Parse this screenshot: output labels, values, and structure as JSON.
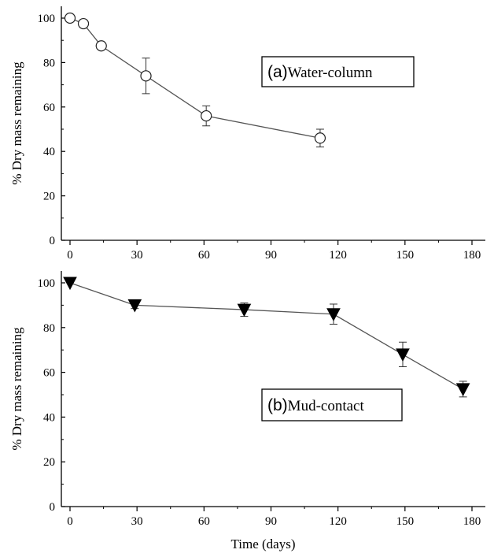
{
  "chart_data": [
    {
      "type": "line",
      "panel": "a",
      "annotation_label": "(a)",
      "annotation_text": "Water-column",
      "ylabel": "% Dry mass remaining",
      "xlabel": "",
      "xlim": [
        0,
        180
      ],
      "ylim": [
        0,
        100
      ],
      "xticks": [
        0,
        30,
        60,
        90,
        120,
        150,
        180
      ],
      "yticks": [
        0,
        20,
        40,
        60,
        80,
        100
      ],
      "marker": "open-circle",
      "points": [
        {
          "x": 0,
          "y": 100,
          "err": 0
        },
        {
          "x": 6,
          "y": 97.5,
          "err": 0
        },
        {
          "x": 14,
          "y": 87.5,
          "err": 1.5
        },
        {
          "x": 34,
          "y": 74,
          "err": 8
        },
        {
          "x": 61,
          "y": 56,
          "err": 4.5
        },
        {
          "x": 112,
          "y": 46,
          "err": 4
        }
      ]
    },
    {
      "type": "line",
      "panel": "b",
      "annotation_label": "(b)",
      "annotation_text": "Mud-contact",
      "ylabel": "% Dry mass remaining",
      "xlabel": "Time (days)",
      "xlim": [
        0,
        180
      ],
      "ylim": [
        0,
        100
      ],
      "xticks": [
        0,
        30,
        60,
        90,
        120,
        150,
        180
      ],
      "yticks": [
        0,
        20,
        40,
        60,
        80,
        100
      ],
      "marker": "filled-down-triangle",
      "points": [
        {
          "x": 0,
          "y": 100,
          "err": 0
        },
        {
          "x": 29,
          "y": 90,
          "err": 1.5
        },
        {
          "x": 78,
          "y": 88,
          "err": 3
        },
        {
          "x": 118,
          "y": 86,
          "err": 4.5
        },
        {
          "x": 149,
          "y": 68,
          "err": 5.5
        },
        {
          "x": 176,
          "y": 52.5,
          "err": 3.5
        }
      ]
    }
  ]
}
